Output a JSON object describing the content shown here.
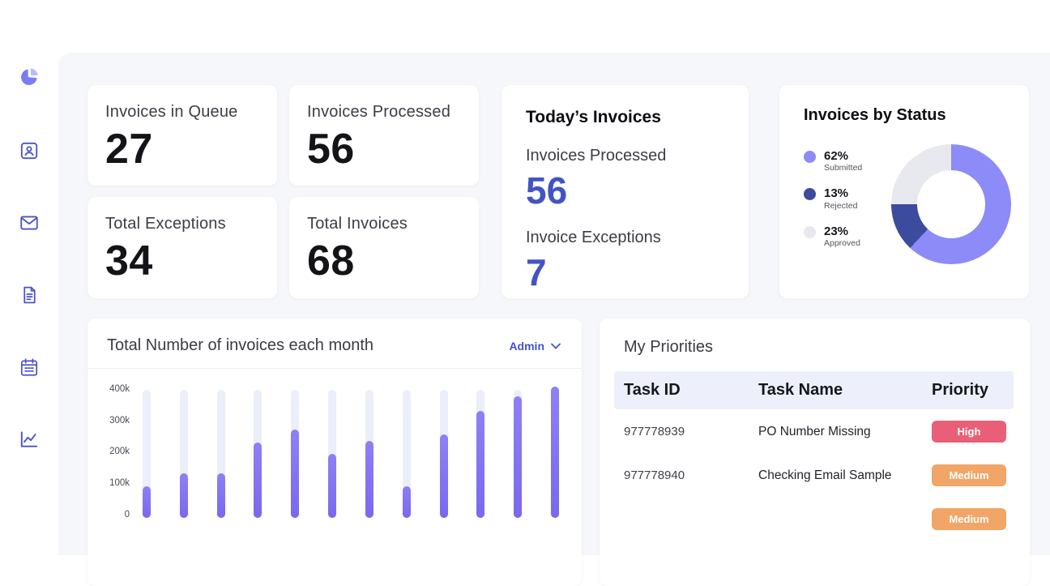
{
  "colors": {
    "accent_purple": "#7a68ee",
    "indigo_text": "#4353c6",
    "high_badge": "#e95f77",
    "medium_badge": "#f1a566"
  },
  "sidebar": {
    "icons": [
      "pie-logo",
      "contacts",
      "mail",
      "document",
      "calendar",
      "line-chart"
    ]
  },
  "stats": {
    "cards": [
      {
        "label": "Invoices in Queue",
        "value": "27"
      },
      {
        "label": "Invoices Processed",
        "value": "56"
      },
      {
        "label": "Total Exceptions",
        "value": "34"
      },
      {
        "label": "Total Invoices",
        "value": "68"
      }
    ]
  },
  "today": {
    "title": "Today’s Invoices",
    "processed_label": "Invoices Processed",
    "processed_value": "56",
    "exceptions_label": "Invoice Exceptions",
    "exceptions_value": "7"
  },
  "status": {
    "title": "Invoices by Status",
    "legend": [
      {
        "pct": "62%",
        "label": "Submitted"
      },
      {
        "pct": "13%",
        "label": "Rejected"
      },
      {
        "pct": "23%",
        "label": "Approved"
      }
    ]
  },
  "monthly_chart": {
    "title": "Total Number of invoices each month",
    "filter_label": "Admin"
  },
  "priorities": {
    "title": "My Priorities",
    "columns": [
      "Task ID",
      "Task Name",
      "Priority"
    ],
    "rows": [
      {
        "id": "977778939",
        "name": "PO Number Missing",
        "priority": "High"
      },
      {
        "id": "977778940",
        "name": "Checking Email Sample",
        "priority": "Medium"
      },
      {
        "id": "",
        "name": "",
        "priority": "Medium"
      }
    ]
  },
  "chart_data": [
    {
      "type": "bar",
      "title": "Total Number of invoices each month",
      "values": [
        100000,
        140000,
        140000,
        235000,
        275000,
        200000,
        240000,
        100000,
        260000,
        335000,
        380000,
        410000
      ],
      "ylim": [
        0,
        400000
      ],
      "yticks": [
        "400k",
        "300k",
        "200k",
        "100k",
        "0"
      ],
      "grid": false,
      "bar_color": "#7a68ee",
      "track_color": "#eceef9"
    },
    {
      "type": "pie",
      "title": "Invoices by Status",
      "labels": [
        "Submitted",
        "Rejected",
        "Approved"
      ],
      "values": [
        62,
        13,
        23
      ],
      "colors": [
        "#8c8bf8",
        "#3c4b9e",
        "#e8e9ee"
      ],
      "legend_position": "left"
    }
  ]
}
